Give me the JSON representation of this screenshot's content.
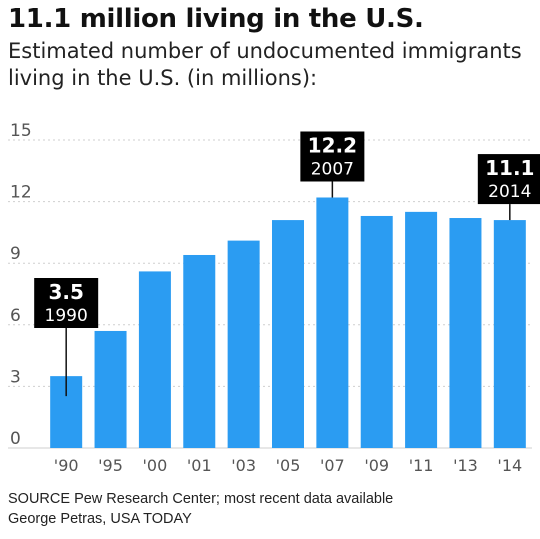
{
  "header": {
    "title": "11.1 million living in the U.S.",
    "subtitle": "Estimated number of undocumented immigrants living in the U.S. (in millions):"
  },
  "footer": {
    "source": "SOURCE Pew Research Center; most recent data available",
    "credit": "George Petras, USA TODAY"
  },
  "colors": {
    "bar": "#2b9cf2",
    "callout_bg": "#000000",
    "callout_text": "#ffffff",
    "grid": "#cfcfcf",
    "axis_text": "#555555"
  },
  "chart_data": {
    "type": "bar",
    "title": "11.1 million living in the U.S.",
    "subtitle": "Estimated number of undocumented immigrants living in the U.S. (in millions):",
    "categories": [
      "'90",
      "'95",
      "'00",
      "'01",
      "'03",
      "'05",
      "'07",
      "'09",
      "'11",
      "'13",
      "'14"
    ],
    "values": [
      3.5,
      5.7,
      8.6,
      9.4,
      10.1,
      11.1,
      12.2,
      11.3,
      11.5,
      11.2,
      11.1
    ],
    "ylim": [
      0,
      15
    ],
    "yticks": [
      0,
      3,
      6,
      9,
      12,
      15
    ],
    "grid": true,
    "grid_style": "dashed horizontal",
    "annotations": [
      {
        "category_index": 0,
        "value_label": "3.5",
        "year_label": "1990"
      },
      {
        "category_index": 6,
        "value_label": "12.2",
        "year_label": "2007"
      },
      {
        "category_index": 10,
        "value_label": "11.1",
        "year_label": "2014"
      }
    ]
  }
}
